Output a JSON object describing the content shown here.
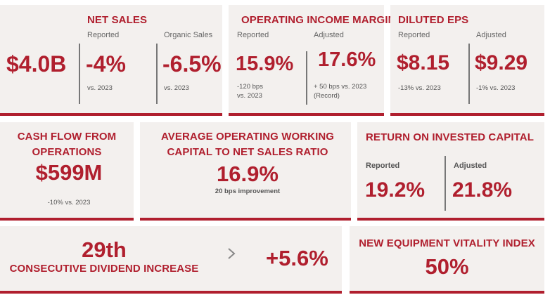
{
  "net_sales": {
    "title": "NET SALES",
    "total": "$4.0B",
    "reported_label": "Reported",
    "reported_value": "-4%",
    "reported_note": "vs. 2023",
    "organic_label": "Organic Sales",
    "organic_value": "-6.5%",
    "organic_note": "vs. 2023"
  },
  "op_income_margin": {
    "title": "OPERATING INCOME MARGIN",
    "reported_label": "Reported",
    "reported_value": "15.9%",
    "reported_note_1": "-120 bps",
    "reported_note_2": "vs. 2023",
    "adjusted_label": "Adjusted",
    "adjusted_value": "17.6%",
    "adjusted_note_1": "+ 50 bps vs. 2023",
    "adjusted_note_2": "(Record)"
  },
  "diluted_eps": {
    "title": "DILUTED EPS",
    "reported_label": "Reported",
    "reported_value": "$8.15",
    "reported_note": "-13% vs. 2023",
    "adjusted_label": "Adjusted",
    "adjusted_value": "$9.29",
    "adjusted_note": "-1% vs. 2023"
  },
  "cash_flow": {
    "title_1": "CASH FLOW FROM",
    "title_2": "OPERATIONS",
    "value": "$599M",
    "note": "-10% vs. 2023"
  },
  "working_capital": {
    "title_1": "AVERAGE OPERATING WORKING",
    "title_2": "CAPITAL TO NET SALES RATIO",
    "value": "16.9%",
    "note": "20 bps improvement"
  },
  "roic": {
    "title": "RETURN ON INVESTED CAPITAL",
    "reported_label": "Reported",
    "reported_value": "19.2%",
    "adjusted_label": "Adjusted",
    "adjusted_value": "21.8%"
  },
  "dividend": {
    "count": "29th",
    "label": "CONSECUTIVE DIVIDEND INCREASE",
    "increase": "+5.6%",
    "arrow_icon": "chevron-right-icon"
  },
  "vitality": {
    "title": "NEW EQUIPMENT VITALITY INDEX",
    "value": "50%"
  },
  "colors": {
    "accent": "#b01f2e",
    "card_bg": "#f3f0ee",
    "divider": "#777777"
  }
}
